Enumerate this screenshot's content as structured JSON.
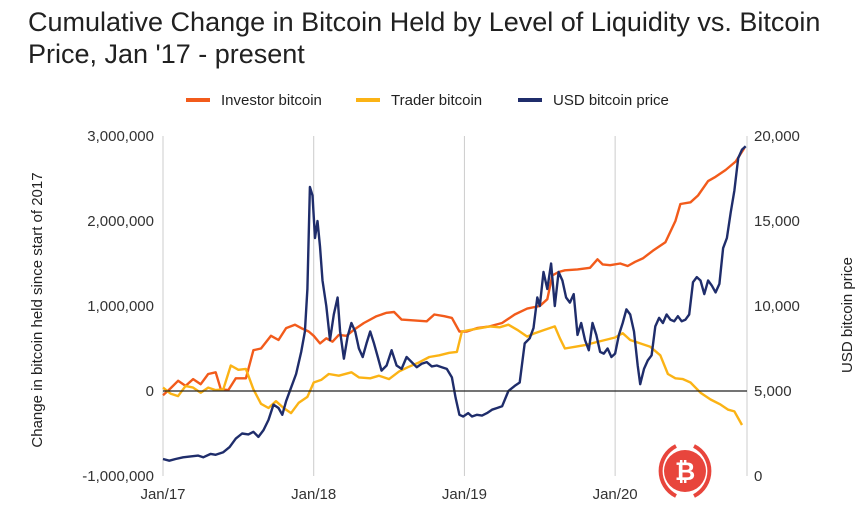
{
  "chart_data": {
    "type": "line",
    "title": "Cumulative Change in Bitcoin Held by Level of Liquidity vs. Bitcoin Price, Jan '17 - present",
    "x_ticks": [
      {
        "label": "Jan/17",
        "t": 0
      },
      {
        "label": "Jan/18",
        "t": 12
      },
      {
        "label": "Jan/19",
        "t": 24
      },
      {
        "label": "Jan/20",
        "t": 36
      }
    ],
    "x_range_months": [
      0,
      46.5
    ],
    "y_left": {
      "label": "Change in bitcoin held since start of 2017",
      "range": [
        -1000000,
        3000000
      ],
      "ticks": [
        {
          "v": -1000000,
          "label": "-1,000,000"
        },
        {
          "v": 0,
          "label": "0"
        },
        {
          "v": 1000000,
          "label": "1,000,000"
        },
        {
          "v": 2000000,
          "label": "2,000,000"
        },
        {
          "v": 3000000,
          "label": "3,000,000"
        }
      ]
    },
    "y_right": {
      "label": "USD bitcoin price",
      "range": [
        0,
        20000
      ],
      "ticks": [
        {
          "v": 0,
          "label": "0"
        },
        {
          "v": 5000,
          "label": "5,000"
        },
        {
          "v": 10000,
          "label": "10,000"
        },
        {
          "v": 15000,
          "label": "15,000"
        },
        {
          "v": 20000,
          "label": "20,000"
        }
      ]
    },
    "series": [
      {
        "name": "Investor bitcoin",
        "color": "#f25b1b",
        "axis": "left",
        "points": [
          [
            0,
            -50000
          ],
          [
            0.6,
            30000
          ],
          [
            1.2,
            120000
          ],
          [
            1.8,
            60000
          ],
          [
            2.4,
            140000
          ],
          [
            3,
            80000
          ],
          [
            3.6,
            200000
          ],
          [
            4.2,
            220000
          ],
          [
            4.6,
            20000
          ],
          [
            5.2,
            10000
          ],
          [
            5.8,
            150000
          ],
          [
            6.6,
            150000
          ],
          [
            7.2,
            480000
          ],
          [
            7.8,
            500000
          ],
          [
            8.6,
            650000
          ],
          [
            9.2,
            600000
          ],
          [
            9.8,
            740000
          ],
          [
            10.5,
            780000
          ],
          [
            11,
            740000
          ],
          [
            11.6,
            700000
          ],
          [
            12,
            650000
          ],
          [
            12.5,
            560000
          ],
          [
            13,
            620000
          ],
          [
            13.5,
            580000
          ],
          [
            14,
            660000
          ],
          [
            14.6,
            650000
          ],
          [
            15.2,
            720000
          ],
          [
            16,
            800000
          ],
          [
            17,
            880000
          ],
          [
            17.8,
            920000
          ],
          [
            18.4,
            930000
          ],
          [
            19,
            840000
          ],
          [
            20,
            830000
          ],
          [
            21,
            820000
          ],
          [
            21.6,
            900000
          ],
          [
            22.4,
            880000
          ],
          [
            23,
            860000
          ],
          [
            23.6,
            700000
          ],
          [
            24.2,
            700000
          ],
          [
            25,
            740000
          ],
          [
            26,
            760000
          ],
          [
            27,
            800000
          ],
          [
            28,
            900000
          ],
          [
            29,
            970000
          ],
          [
            30,
            1000000
          ],
          [
            30.6,
            1080000
          ],
          [
            31,
            1360000
          ],
          [
            31.5,
            1400000
          ],
          [
            32,
            1420000
          ],
          [
            33,
            1430000
          ],
          [
            34,
            1450000
          ],
          [
            34.6,
            1550000
          ],
          [
            35,
            1490000
          ],
          [
            35.6,
            1480000
          ],
          [
            36.4,
            1500000
          ],
          [
            37,
            1470000
          ],
          [
            37.6,
            1520000
          ],
          [
            38.2,
            1560000
          ],
          [
            39,
            1650000
          ],
          [
            40,
            1750000
          ],
          [
            40.8,
            2000000
          ],
          [
            41.2,
            2200000
          ],
          [
            42,
            2220000
          ],
          [
            42.6,
            2300000
          ],
          [
            43.4,
            2470000
          ],
          [
            44,
            2520000
          ],
          [
            44.8,
            2600000
          ],
          [
            45.6,
            2700000
          ],
          [
            46.3,
            2860000
          ]
        ]
      },
      {
        "name": "Trader bitcoin",
        "color": "#fbb315",
        "axis": "left",
        "points": [
          [
            0,
            40000
          ],
          [
            0.6,
            -30000
          ],
          [
            1.2,
            -60000
          ],
          [
            1.8,
            60000
          ],
          [
            2.4,
            40000
          ],
          [
            3,
            -20000
          ],
          [
            3.6,
            40000
          ],
          [
            4.2,
            10000
          ],
          [
            4.8,
            20000
          ],
          [
            5.4,
            300000
          ],
          [
            6,
            250000
          ],
          [
            6.6,
            260000
          ],
          [
            7.2,
            20000
          ],
          [
            7.8,
            -150000
          ],
          [
            8.4,
            -200000
          ],
          [
            9,
            -120000
          ],
          [
            9.6,
            -200000
          ],
          [
            10.2,
            -260000
          ],
          [
            10.8,
            -140000
          ],
          [
            11.5,
            -70000
          ],
          [
            12,
            100000
          ],
          [
            12.6,
            130000
          ],
          [
            13.2,
            200000
          ],
          [
            14,
            180000
          ],
          [
            15,
            220000
          ],
          [
            15.6,
            160000
          ],
          [
            16.5,
            150000
          ],
          [
            17.2,
            180000
          ],
          [
            18,
            140000
          ],
          [
            18.8,
            230000
          ],
          [
            19.5,
            280000
          ],
          [
            20.3,
            330000
          ],
          [
            21.2,
            400000
          ],
          [
            22,
            420000
          ],
          [
            22.8,
            450000
          ],
          [
            23.4,
            460000
          ],
          [
            23.8,
            700000
          ],
          [
            24.5,
            720000
          ],
          [
            25.3,
            740000
          ],
          [
            26,
            760000
          ],
          [
            26.8,
            750000
          ],
          [
            27.5,
            780000
          ],
          [
            28.2,
            720000
          ],
          [
            29,
            640000
          ],
          [
            29.6,
            680000
          ],
          [
            30.4,
            720000
          ],
          [
            31.2,
            760000
          ],
          [
            31.6,
            620000
          ],
          [
            32,
            500000
          ],
          [
            32.8,
            520000
          ],
          [
            33.6,
            540000
          ],
          [
            34.4,
            570000
          ],
          [
            35.2,
            600000
          ],
          [
            36,
            630000
          ],
          [
            36.6,
            680000
          ],
          [
            37.2,
            600000
          ],
          [
            38,
            560000
          ],
          [
            38.8,
            520000
          ],
          [
            39.6,
            420000
          ],
          [
            40.2,
            200000
          ],
          [
            40.8,
            150000
          ],
          [
            41.4,
            140000
          ],
          [
            42,
            100000
          ],
          [
            42.8,
            -20000
          ],
          [
            43.6,
            -100000
          ],
          [
            44.4,
            -160000
          ],
          [
            45,
            -220000
          ],
          [
            45.5,
            -240000
          ],
          [
            46.1,
            -400000
          ]
        ]
      },
      {
        "name": "USD bitcoin price",
        "color": "#1f2d6b",
        "axis": "right",
        "points": [
          [
            0,
            1000
          ],
          [
            0.5,
            900
          ],
          [
            1,
            1000
          ],
          [
            1.6,
            1100
          ],
          [
            2.2,
            1150
          ],
          [
            2.8,
            1200
          ],
          [
            3.2,
            1100
          ],
          [
            3.8,
            1300
          ],
          [
            4.2,
            1250
          ],
          [
            4.8,
            1400
          ],
          [
            5.3,
            1700
          ],
          [
            5.8,
            2200
          ],
          [
            6.3,
            2500
          ],
          [
            6.8,
            2450
          ],
          [
            7.2,
            2600
          ],
          [
            7.6,
            2300
          ],
          [
            8,
            2700
          ],
          [
            8.4,
            3300
          ],
          [
            8.8,
            4200
          ],
          [
            9.2,
            4000
          ],
          [
            9.5,
            3600
          ],
          [
            9.8,
            4400
          ],
          [
            10.2,
            5200
          ],
          [
            10.6,
            6000
          ],
          [
            11,
            7300
          ],
          [
            11.3,
            8500
          ],
          [
            11.5,
            11000
          ],
          [
            11.7,
            17000
          ],
          [
            11.9,
            16500
          ],
          [
            12.1,
            14000
          ],
          [
            12.3,
            15000
          ],
          [
            12.5,
            13500
          ],
          [
            12.7,
            11500
          ],
          [
            13,
            10000
          ],
          [
            13.3,
            8000
          ],
          [
            13.6,
            9500
          ],
          [
            13.9,
            10500
          ],
          [
            14.1,
            8500
          ],
          [
            14.4,
            6900
          ],
          [
            14.7,
            8200
          ],
          [
            15,
            9000
          ],
          [
            15.3,
            8500
          ],
          [
            15.6,
            7500
          ],
          [
            15.9,
            7000
          ],
          [
            16.2,
            7800
          ],
          [
            16.5,
            8500
          ],
          [
            16.8,
            7800
          ],
          [
            17.1,
            7000
          ],
          [
            17.4,
            6200
          ],
          [
            17.8,
            6500
          ],
          [
            18.2,
            7400
          ],
          [
            18.6,
            6500
          ],
          [
            19,
            6300
          ],
          [
            19.4,
            7000
          ],
          [
            19.8,
            6700
          ],
          [
            20.2,
            6400
          ],
          [
            20.6,
            6600
          ],
          [
            21,
            6700
          ],
          [
            21.4,
            6450
          ],
          [
            21.8,
            6500
          ],
          [
            22.2,
            6400
          ],
          [
            22.6,
            6300
          ],
          [
            23,
            5800
          ],
          [
            23.3,
            4600
          ],
          [
            23.6,
            3600
          ],
          [
            23.9,
            3500
          ],
          [
            24.3,
            3700
          ],
          [
            24.6,
            3500
          ],
          [
            25,
            3600
          ],
          [
            25.4,
            3550
          ],
          [
            25.8,
            3700
          ],
          [
            26.2,
            3900
          ],
          [
            26.6,
            4000
          ],
          [
            27,
            4100
          ],
          [
            27.5,
            5000
          ],
          [
            28,
            5300
          ],
          [
            28.4,
            5500
          ],
          [
            28.8,
            7800
          ],
          [
            29.2,
            8100
          ],
          [
            29.5,
            8700
          ],
          [
            29.8,
            10500
          ],
          [
            30,
            10000
          ],
          [
            30.3,
            12000
          ],
          [
            30.6,
            11000
          ],
          [
            30.9,
            12500
          ],
          [
            31.2,
            10000
          ],
          [
            31.5,
            12000
          ],
          [
            31.8,
            11500
          ],
          [
            32.1,
            10500
          ],
          [
            32.4,
            10200
          ],
          [
            32.7,
            10700
          ],
          [
            33,
            8300
          ],
          [
            33.3,
            9000
          ],
          [
            33.6,
            8000
          ],
          [
            33.9,
            7400
          ],
          [
            34.2,
            9000
          ],
          [
            34.5,
            8300
          ],
          [
            34.8,
            7300
          ],
          [
            35.1,
            7200
          ],
          [
            35.4,
            7500
          ],
          [
            35.7,
            7000
          ],
          [
            36,
            7200
          ],
          [
            36.3,
            8300
          ],
          [
            36.6,
            9000
          ],
          [
            36.9,
            9800
          ],
          [
            37.2,
            9500
          ],
          [
            37.5,
            8500
          ],
          [
            37.8,
            6500
          ],
          [
            38,
            5400
          ],
          [
            38.3,
            6300
          ],
          [
            38.6,
            6800
          ],
          [
            38.9,
            7100
          ],
          [
            39.2,
            8800
          ],
          [
            39.5,
            9300
          ],
          [
            39.8,
            9000
          ],
          [
            40.1,
            9500
          ],
          [
            40.4,
            9200
          ],
          [
            40.7,
            9100
          ],
          [
            41,
            9400
          ],
          [
            41.3,
            9100
          ],
          [
            41.6,
            9200
          ],
          [
            41.9,
            9500
          ],
          [
            42.2,
            11400
          ],
          [
            42.5,
            11700
          ],
          [
            42.8,
            11500
          ],
          [
            43.1,
            10700
          ],
          [
            43.4,
            11500
          ],
          [
            43.7,
            11200
          ],
          [
            44,
            10800
          ],
          [
            44.3,
            11300
          ],
          [
            44.6,
            13400
          ],
          [
            44.9,
            14000
          ],
          [
            45.2,
            15500
          ],
          [
            45.5,
            16800
          ],
          [
            45.8,
            18700
          ],
          [
            46.1,
            19200
          ],
          [
            46.4,
            19400
          ]
        ]
      }
    ],
    "legend": [
      "Investor bitcoin",
      "Trader bitcoin",
      "USD bitcoin price"
    ],
    "grid": "vertical at x ticks, solid baseline at 0"
  }
}
